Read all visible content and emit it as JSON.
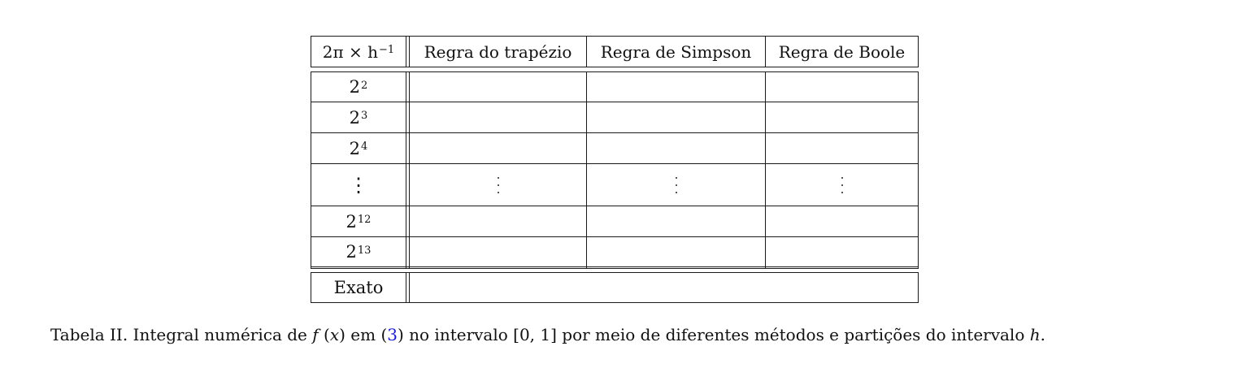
{
  "table": {
    "header": {
      "col0": "2π × h",
      "col0_sup": "−1",
      "col1": "Regra do trapézio",
      "col2": "Regra de Simpson",
      "col3": "Regra de Boole"
    },
    "rows": [
      {
        "base": "2",
        "exp": "2"
      },
      {
        "base": "2",
        "exp": "3"
      },
      {
        "base": "2",
        "exp": "4"
      },
      {
        "base": "⋮",
        "exp": ""
      },
      {
        "base": "2",
        "exp": "12"
      },
      {
        "base": "2",
        "exp": "13"
      }
    ],
    "footer_label": "Exato"
  },
  "caption": {
    "prefix": "Tabela II. Integral numérica de ",
    "func": "f",
    "arg_open": " (",
    "arg": "x",
    "arg_close": ")",
    "mid1": " em (",
    "ref": "3",
    "mid2": ") no intervalo [0, 1] por meio de diferentes métodos e partições do intervalo ",
    "var": "h",
    "suffix": "."
  }
}
